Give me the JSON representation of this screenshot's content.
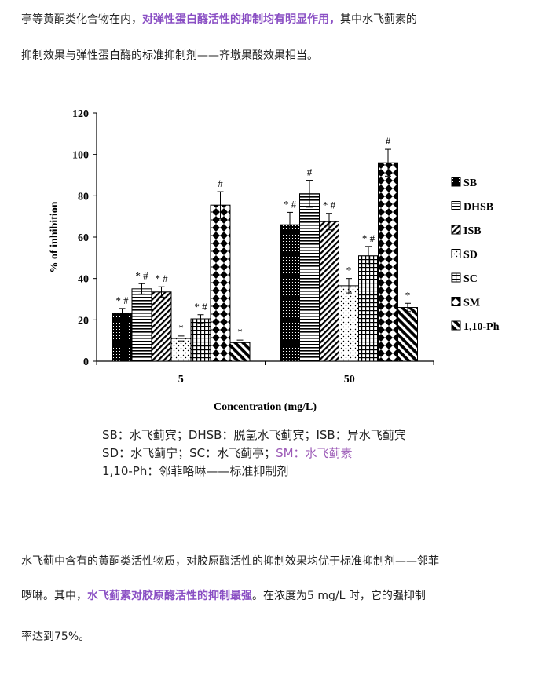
{
  "text": {
    "p1_a": "亭等黄酮类化合物在内，",
    "p1_b": "对弹性蛋白酶活性的抑制均有明显作用，",
    "p1_c": "其中水飞蓟素的",
    "p2": "抑制效果与弹性蛋白酶的标准抑制剂——齐墩果酸效果相当。",
    "p3": "水飞蓟中含有的黄酮类活性物质，对胶原酶活性的抑制效果均优于标准抑制剂——邻菲",
    "p4_a": "啰啉。其中，",
    "p4_b": "水飞蓟素对胶原酶活性的抑制最强",
    "p4_c": "。在浓度为5 mg/L 时，它的强抑制",
    "p5": "率达到75%。",
    "cap1": "SB：水飞蓟宾；DHSB：脱氢水飞蓟宾；ISB：异水飞蓟宾",
    "cap2_a": "SD：水飞蓟宁；SC：水飞蓟亭；",
    "cap2_b": "SM：水飞蓟素",
    "cap3": "1,10-Ph：邻菲咯啉——标准抑制剂"
  },
  "colors": {
    "highlight": "#8a4fc4",
    "caption_highlight": "#9b59b6"
  },
  "chart_data": {
    "type": "bar",
    "xlabel": "Concentration (mg/L)",
    "ylabel": "% of inhibition",
    "ylim": [
      0,
      120
    ],
    "yticks": [
      0,
      20,
      40,
      60,
      80,
      100,
      120
    ],
    "categories": [
      "5",
      "50"
    ],
    "legend_position": "right",
    "series": [
      {
        "name": "SB",
        "pattern": "solid-dots",
        "values": [
          23,
          66
        ],
        "errors": [
          2.5,
          6
        ],
        "marks": [
          "* #",
          "* #"
        ]
      },
      {
        "name": "DHSB",
        "pattern": "hlines",
        "values": [
          35,
          81
        ],
        "errors": [
          2.5,
          6.5
        ],
        "marks": [
          "* #",
          "#"
        ]
      },
      {
        "name": "ISB",
        "pattern": "diag",
        "values": [
          33.5,
          67.5
        ],
        "errors": [
          2.5,
          4
        ],
        "marks": [
          "* #",
          "* #"
        ]
      },
      {
        "name": "SD",
        "pattern": "dots",
        "values": [
          11,
          36.5
        ],
        "errors": [
          1.2,
          3.5
        ],
        "marks": [
          "*",
          "*"
        ]
      },
      {
        "name": "SC",
        "pattern": "grid",
        "values": [
          20.5,
          51
        ],
        "errors": [
          2,
          4.5
        ],
        "marks": [
          "* #",
          "* #"
        ]
      },
      {
        "name": "SM",
        "pattern": "diamond",
        "values": [
          75.5,
          96
        ],
        "errors": [
          6.5,
          6.5
        ],
        "marks": [
          "#",
          "#"
        ]
      },
      {
        "name": "1,10-Ph",
        "pattern": "stripes",
        "values": [
          9,
          26
        ],
        "errors": [
          1.2,
          2
        ],
        "marks": [
          "*",
          "*"
        ]
      }
    ]
  }
}
